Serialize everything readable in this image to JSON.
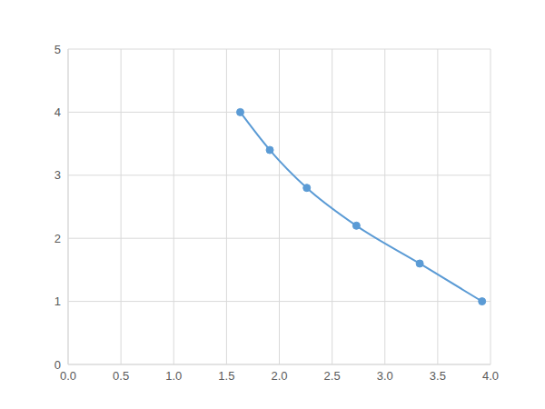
{
  "chart_data": {
    "type": "line",
    "x": [
      1.63,
      1.91,
      2.26,
      2.73,
      3.33,
      3.92
    ],
    "values": [
      4.0,
      3.4,
      2.8,
      2.2,
      1.6,
      1.0
    ],
    "color": "#5b9bd5",
    "marker": "circle",
    "line_style": "solid",
    "xlim": [
      0,
      4
    ],
    "xticks": [
      {
        "value": 0,
        "label": "0.0"
      },
      0.5,
      {
        "value": 1,
        "label": "1.0"
      },
      1.5,
      {
        "value": 2,
        "label": "2.0"
      },
      2.5,
      {
        "value": 3,
        "label": "3.0"
      },
      3.5,
      {
        "value": 4,
        "label": "4.0"
      }
    ],
    "ylim": [
      0,
      5
    ],
    "yticks": [
      0,
      1,
      2,
      3,
      4,
      5
    ],
    "grid": true
  }
}
